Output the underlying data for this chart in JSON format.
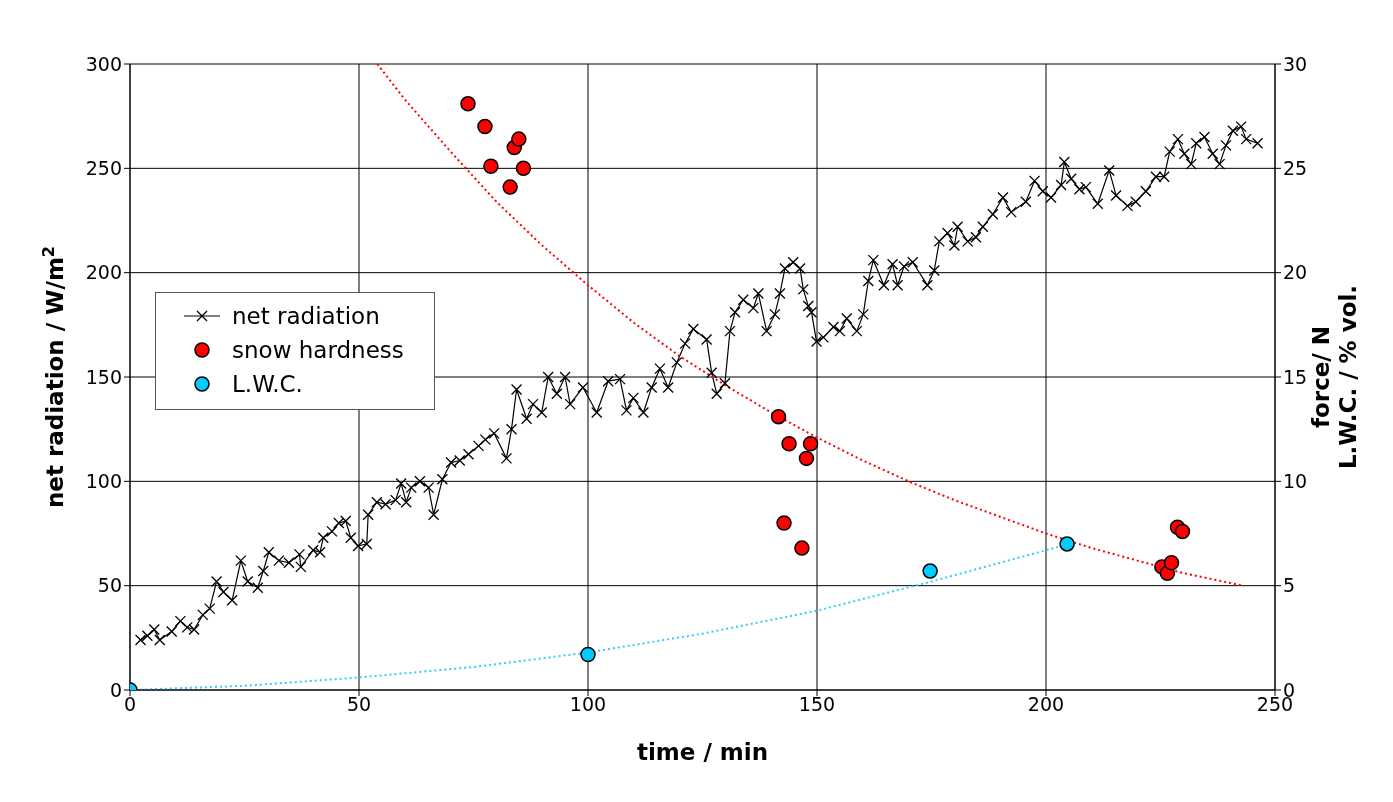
{
  "chart_data": {
    "type": "line",
    "xlabel": "time / min",
    "ylabel": "net radiation / W/m$^{2}$",
    "y2label": "force/ N\nL.W.C. / % vol.",
    "xlim": [
      0,
      250
    ],
    "xticks": [
      0,
      50,
      100,
      150,
      200,
      250
    ],
    "ylim": [
      0,
      300
    ],
    "yticks": [
      0,
      50,
      100,
      150,
      200,
      250,
      300
    ],
    "y2lim": [
      0,
      30
    ],
    "y2ticks": [
      0,
      5,
      10,
      15,
      20,
      25,
      30
    ],
    "grid": true,
    "legend": "left",
    "series": [
      {
        "name": "net radiation",
        "type": "line",
        "color": "#000000",
        "marker": "cross",
        "line_style": "solid",
        "x": [
          2.3,
          3.8,
          5.3,
          6.5,
          9.1,
          11,
          12.5,
          14,
          15.9,
          17.4,
          18.9,
          20.4,
          22.3,
          24.2,
          25.7,
          27.9,
          29.1,
          30.3,
          32.5,
          34.7,
          37,
          37.3,
          40,
          41.5,
          42.2,
          44.1,
          45.6,
          47.1,
          48.2,
          49.8,
          51.7,
          52,
          53.9,
          55.8,
          58,
          59.2,
          60.3,
          61.4,
          63.3,
          65.2,
          66.3,
          68.2,
          70.1,
          72,
          73.9,
          76.1,
          77.6,
          79.5,
          82.2,
          83.3,
          84.4,
          86.6,
          88,
          89.9,
          91.3,
          93.2,
          95,
          96.1,
          98.9,
          101.9,
          104.4,
          107,
          108.4,
          109.9,
          112.1,
          113.9,
          115.7,
          117.5,
          119.4,
          121.2,
          123,
          125.9,
          127,
          128.1,
          129.9,
          131,
          132.1,
          133.9,
          136.1,
          137.2,
          139,
          140.8,
          141.9,
          143,
          144.8,
          146.3,
          147,
          148.1,
          148.8,
          149.9,
          151.4,
          153.6,
          155,
          156.5,
          158.7,
          160.1,
          161.2,
          162.3,
          164.6,
          166.5,
          167.6,
          169,
          170.9,
          174.1,
          175.6,
          176.7,
          178.5,
          180,
          180.7,
          182.9,
          184.7,
          186.2,
          188.4,
          190.6,
          192.4,
          195.6,
          197.5,
          199.3,
          201.1,
          203.3,
          204,
          205.5,
          207.3,
          208.7,
          211.3,
          213.8,
          215.3,
          217.8,
          219.6,
          221.8,
          224,
          225.8,
          227,
          228.8,
          230.2,
          231.7,
          232.8,
          234.6,
          236.4,
          237.9,
          239.3,
          240.8,
          242.6,
          243.7,
          246.2
        ],
        "values": [
          24,
          26,
          29,
          24,
          28,
          33,
          30,
          29,
          36,
          39,
          52,
          47,
          43,
          62,
          52,
          49,
          57,
          66,
          62,
          61,
          65,
          59,
          67,
          66,
          73,
          76,
          80,
          81,
          73,
          69,
          70,
          84,
          90,
          89,
          91,
          99,
          90,
          97,
          100,
          97,
          84,
          101,
          109,
          110,
          113,
          117,
          120,
          123,
          111,
          125,
          144,
          130,
          137,
          133,
          150,
          142,
          150,
          137,
          145,
          133,
          148,
          149,
          134,
          140,
          133,
          145,
          154,
          145,
          157,
          166,
          173,
          168,
          152,
          142,
          147,
          172,
          181,
          187,
          183,
          190,
          172,
          180,
          190,
          202,
          205,
          202,
          192,
          184,
          181,
          167,
          169,
          174,
          172,
          178,
          172,
          180,
          196,
          206,
          194,
          204,
          194,
          203,
          205,
          194,
          201,
          215,
          219,
          213,
          222,
          215,
          217,
          222,
          228,
          236,
          229,
          234,
          244,
          239,
          236,
          242,
          253,
          245,
          240,
          241,
          233,
          249,
          237,
          232,
          234,
          239,
          246,
          246,
          258,
          264,
          257,
          252,
          262,
          265,
          257,
          252,
          261,
          268,
          270,
          264,
          262
        ]
      },
      {
        "name": "snow hardness",
        "type": "scatter",
        "axis": "y2",
        "color": "#ff0000",
        "marker": "circle",
        "x": [
          73.8,
          77.5,
          78.8,
          83,
          83.9,
          84.9,
          85.9,
          141.6,
          143.9,
          148.6,
          147.7,
          142.8,
          146.7,
          225.3,
          226.5,
          227.4,
          228.7,
          229.8
        ],
        "values": [
          28.1,
          27,
          25.1,
          24.1,
          26,
          26.4,
          25,
          13.1,
          11.8,
          11.8,
          11.1,
          8,
          6.8,
          5.9,
          5.6,
          6.1,
          7.8,
          7.6
        ]
      },
      {
        "name": "L.W.C.",
        "type": "scatter",
        "axis": "y2",
        "color": "#00ccff",
        "marker": "circle",
        "x": [
          0,
          100,
          174.7,
          204.6
        ],
        "values": [
          0,
          1.7,
          5.7,
          7
        ]
      },
      {
        "type": "line",
        "axis": "y2",
        "color": "#ff0000",
        "marker": "none",
        "line_style": "dotted",
        "x": [
          54,
          60,
          70,
          80,
          90,
          100,
          110,
          120,
          130,
          140,
          150,
          160,
          170,
          180,
          190,
          200,
          210,
          220,
          230,
          243
        ],
        "values": [
          30,
          28.3,
          25.8,
          23.4,
          21.3,
          19.4,
          17.6,
          16,
          14.6,
          13.3,
          12.1,
          11,
          10,
          9.1,
          8.3,
          7.5,
          6.8,
          6.2,
          5.6,
          5
        ]
      },
      {
        "type": "line",
        "axis": "y2",
        "color": "#33ccff",
        "marker": "none",
        "line_style": "dotted",
        "x": [
          0,
          25,
          50,
          75,
          100,
          125,
          150,
          175,
          205
        ],
        "values": [
          0,
          0.2,
          0.6,
          1.1,
          1.8,
          2.7,
          3.8,
          5.2,
          7
        ]
      }
    ]
  }
}
